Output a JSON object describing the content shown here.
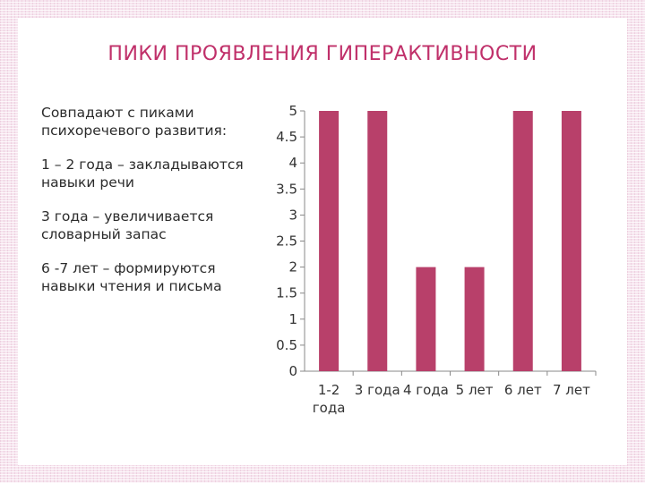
{
  "title": "ПИКИ ПРОЯВЛЕНИЯ ГИПЕРАКТИВНОСТИ",
  "text_items": [
    "Совпадают с пиками психоречевого развития:",
    "1 – 2 года – закладываются навыки речи",
    "3 года – увеличивается словарный запас",
    "6 -7 лет – формируются навыки чтения и письма"
  ],
  "colors": {
    "bar": "#b8406a",
    "title": "#c0306a",
    "axis": "#888888"
  },
  "chart_data": {
    "type": "bar",
    "categories": [
      "1-2 года",
      "3 года",
      "4 года",
      "5 лет",
      "6 лет",
      "7 лет"
    ],
    "values": [
      5,
      5,
      2,
      2,
      5,
      5
    ],
    "yticks": [
      "0",
      "0.5",
      "1",
      "1.5",
      "2",
      "2.5",
      "3",
      "3.5",
      "4",
      "4.5",
      "5"
    ],
    "ylim": [
      0,
      5
    ],
    "title": "",
    "xlabel": "",
    "ylabel": "",
    "grid": false,
    "legend": "none"
  }
}
